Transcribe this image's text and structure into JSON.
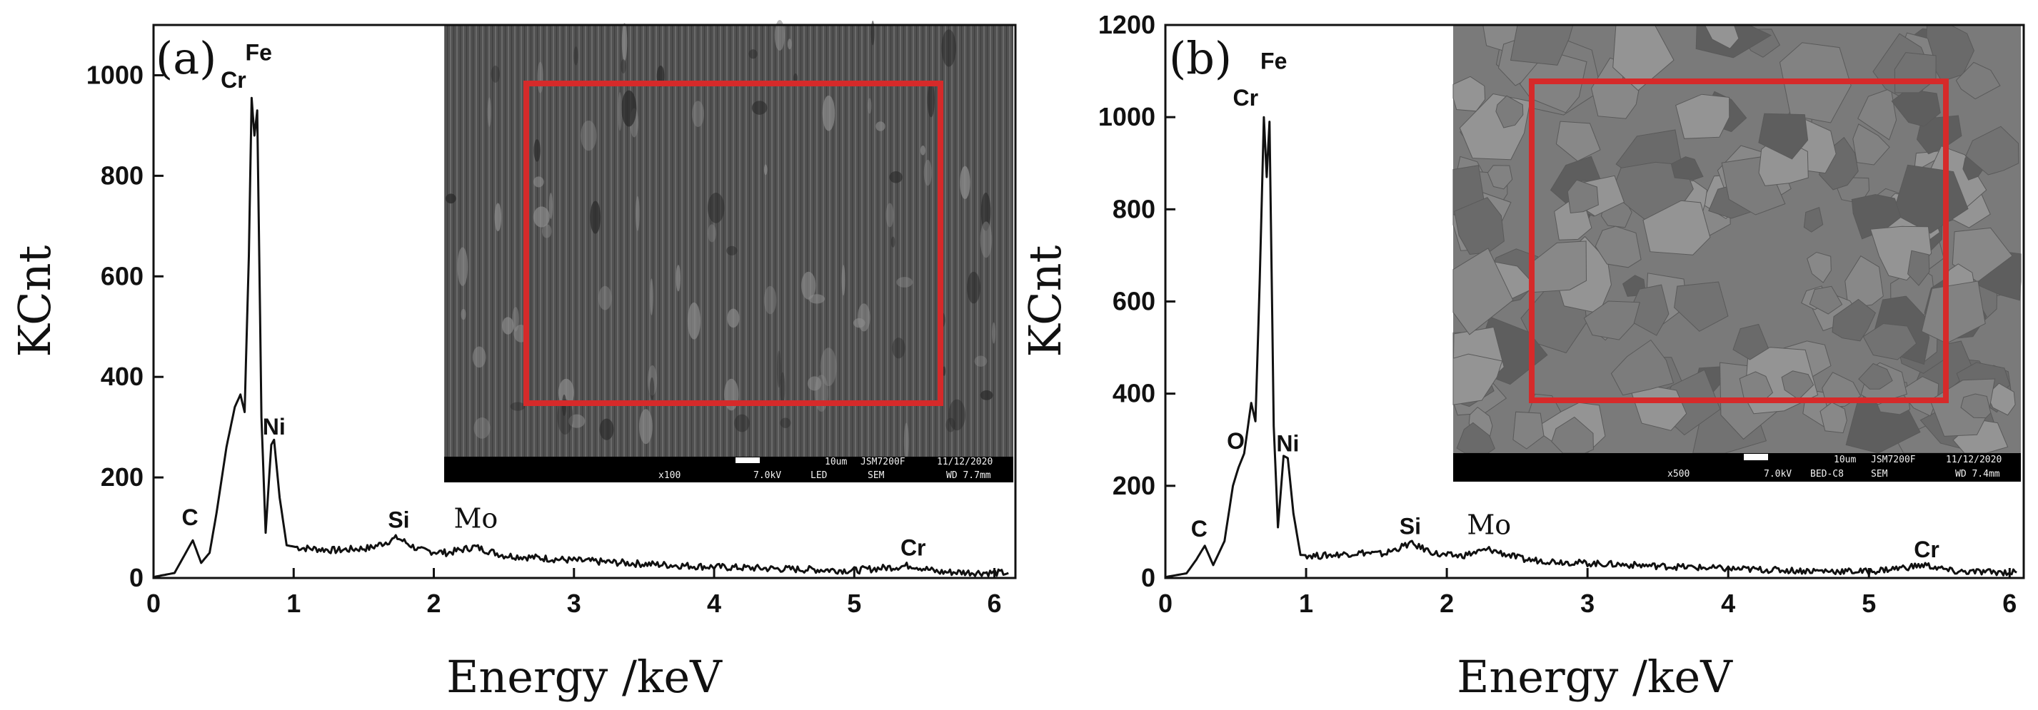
{
  "colors": {
    "axis": "#111111",
    "spectrum": "#111111",
    "roi_box": "#d62a2a",
    "sem_a_base": "#4e4e4e",
    "sem_b_base": "#7a7a7a",
    "sem_info_bar": "#000000"
  },
  "chart_data": [
    {
      "type": "line",
      "panel_label": "(a)",
      "xlabel": "Energy /keV",
      "ylabel": "KCnt",
      "xlim": [
        0,
        6.15
      ],
      "ylim": [
        0,
        1100
      ],
      "xticks": [
        0,
        1,
        2,
        3,
        4,
        5,
        6
      ],
      "yticks": [
        0,
        200,
        400,
        600,
        800,
        1000
      ],
      "peaks": [
        {
          "x": 0.0,
          "y": 2
        },
        {
          "x": 0.15,
          "y": 10
        },
        {
          "x": 0.22,
          "y": 45
        },
        {
          "x": 0.28,
          "y": 75
        },
        {
          "x": 0.34,
          "y": 30
        },
        {
          "x": 0.4,
          "y": 50
        },
        {
          "x": 0.45,
          "y": 130
        },
        {
          "x": 0.52,
          "y": 260
        },
        {
          "x": 0.58,
          "y": 340
        },
        {
          "x": 0.62,
          "y": 365
        },
        {
          "x": 0.65,
          "y": 330
        },
        {
          "x": 0.68,
          "y": 640
        },
        {
          "x": 0.7,
          "y": 955
        },
        {
          "x": 0.72,
          "y": 880
        },
        {
          "x": 0.74,
          "y": 930
        },
        {
          "x": 0.77,
          "y": 320
        },
        {
          "x": 0.8,
          "y": 90
        },
        {
          "x": 0.84,
          "y": 265
        },
        {
          "x": 0.86,
          "y": 275
        },
        {
          "x": 0.9,
          "y": 160
        },
        {
          "x": 0.95,
          "y": 65
        },
        {
          "x": 1.05,
          "y": 60
        },
        {
          "x": 1.3,
          "y": 55
        },
        {
          "x": 1.55,
          "y": 60
        },
        {
          "x": 1.74,
          "y": 80
        },
        {
          "x": 1.9,
          "y": 55
        },
        {
          "x": 2.1,
          "y": 50
        },
        {
          "x": 2.29,
          "y": 62
        },
        {
          "x": 2.5,
          "y": 45
        },
        {
          "x": 3.0,
          "y": 35
        },
        {
          "x": 3.5,
          "y": 28
        },
        {
          "x": 4.0,
          "y": 22
        },
        {
          "x": 4.5,
          "y": 18
        },
        {
          "x": 5.0,
          "y": 15
        },
        {
          "x": 5.41,
          "y": 25
        },
        {
          "x": 5.6,
          "y": 12
        },
        {
          "x": 6.1,
          "y": 10
        }
      ],
      "peak_labels": [
        {
          "text": "C",
          "x": 0.26,
          "y": 105,
          "style": "sans"
        },
        {
          "text": "Cr",
          "x": 0.57,
          "y": 975,
          "style": "sans"
        },
        {
          "text": "Fe",
          "x": 0.75,
          "y": 1030,
          "style": "sans"
        },
        {
          "text": "Ni",
          "x": 0.86,
          "y": 285,
          "style": "sans"
        },
        {
          "text": "Si",
          "x": 1.75,
          "y": 100,
          "style": "sans"
        },
        {
          "text": "Mo",
          "x": 2.3,
          "y": 100,
          "style": "serif"
        },
        {
          "text": "Cr",
          "x": 5.42,
          "y": 45,
          "style": "sans"
        }
      ],
      "inset": {
        "info_bar": [
          "x100",
          "7.0kV",
          "LED",
          "SEM",
          "10um",
          "JSM7200F",
          "11/12/2020",
          "WD 7.7mm"
        ]
      }
    },
    {
      "type": "line",
      "panel_label": "(b)",
      "xlabel": "Energy /keV",
      "ylabel": "KCnt",
      "xlim": [
        0,
        6.1
      ],
      "ylim": [
        0,
        1200
      ],
      "xticks": [
        0,
        1,
        2,
        3,
        4,
        5,
        6
      ],
      "yticks": [
        0,
        200,
        400,
        600,
        800,
        1000,
        1200
      ],
      "peaks": [
        {
          "x": 0.0,
          "y": 2
        },
        {
          "x": 0.15,
          "y": 10
        },
        {
          "x": 0.22,
          "y": 40
        },
        {
          "x": 0.28,
          "y": 70
        },
        {
          "x": 0.34,
          "y": 28
        },
        {
          "x": 0.42,
          "y": 80
        },
        {
          "x": 0.48,
          "y": 200
        },
        {
          "x": 0.52,
          "y": 240
        },
        {
          "x": 0.56,
          "y": 270
        },
        {
          "x": 0.61,
          "y": 380
        },
        {
          "x": 0.64,
          "y": 340
        },
        {
          "x": 0.67,
          "y": 640
        },
        {
          "x": 0.7,
          "y": 1000
        },
        {
          "x": 0.72,
          "y": 870
        },
        {
          "x": 0.74,
          "y": 990
        },
        {
          "x": 0.77,
          "y": 330
        },
        {
          "x": 0.8,
          "y": 110
        },
        {
          "x": 0.84,
          "y": 265
        },
        {
          "x": 0.87,
          "y": 260
        },
        {
          "x": 0.91,
          "y": 140
        },
        {
          "x": 0.96,
          "y": 50
        },
        {
          "x": 1.1,
          "y": 48
        },
        {
          "x": 1.4,
          "y": 55
        },
        {
          "x": 1.55,
          "y": 52
        },
        {
          "x": 1.74,
          "y": 75
        },
        {
          "x": 1.95,
          "y": 50
        },
        {
          "x": 2.1,
          "y": 48
        },
        {
          "x": 2.3,
          "y": 62
        },
        {
          "x": 2.55,
          "y": 40
        },
        {
          "x": 3.0,
          "y": 32
        },
        {
          "x": 3.5,
          "y": 26
        },
        {
          "x": 4.0,
          "y": 20
        },
        {
          "x": 4.5,
          "y": 16
        },
        {
          "x": 5.0,
          "y": 14
        },
        {
          "x": 5.4,
          "y": 28
        },
        {
          "x": 5.6,
          "y": 14
        },
        {
          "x": 6.05,
          "y": 12
        }
      ],
      "peak_labels": [
        {
          "text": "C",
          "x": 0.24,
          "y": 90,
          "style": "sans"
        },
        {
          "text": "O",
          "x": 0.5,
          "y": 280,
          "style": "sans"
        },
        {
          "text": "Cr",
          "x": 0.57,
          "y": 1025,
          "style": "sans"
        },
        {
          "text": "Fe",
          "x": 0.77,
          "y": 1105,
          "style": "sans"
        },
        {
          "text": "Ni",
          "x": 0.87,
          "y": 275,
          "style": "sans"
        },
        {
          "text": "Si",
          "x": 1.74,
          "y": 95,
          "style": "sans"
        },
        {
          "text": "Mo",
          "x": 2.3,
          "y": 95,
          "style": "serif"
        },
        {
          "text": "Cr",
          "x": 5.41,
          "y": 45,
          "style": "sans"
        }
      ],
      "inset": {
        "info_bar": [
          "x500",
          "7.0kV",
          "BED-C8",
          "SEM",
          "10um",
          "JSM7200F",
          "11/12/2020",
          "WD 7.4mm"
        ]
      }
    }
  ]
}
